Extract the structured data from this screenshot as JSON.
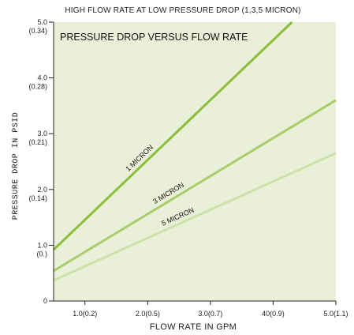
{
  "chart_data": {
    "type": "line",
    "title": "HIGH FLOW RATE AT LOW PRESSURE DROP (1,3,5 MICRON)",
    "subtitle": "PRESSURE DROP VERSUS FLOW RATE",
    "xlabel": "FLOW RATE IN GPM",
    "ylabel": "PRESSURE DROP IN PSID",
    "xlim": [
      0.5,
      5.0
    ],
    "ylim": [
      0,
      5.0
    ],
    "x_ticks": [
      {
        "value": 1.0,
        "label": "1.0(0.2)"
      },
      {
        "value": 2.0,
        "label": "2.0(0.5)"
      },
      {
        "value": 3.0,
        "label": "3.0(0.7)"
      },
      {
        "value": 4.0,
        "label": "40(0.9)"
      },
      {
        "value": 5.0,
        "label": "5.0(1.1)"
      }
    ],
    "y_ticks": [
      {
        "value": 0,
        "label": "0",
        "sub": ""
      },
      {
        "value": 1.0,
        "label": "1.0",
        "sub": "(0.)"
      },
      {
        "value": 2.0,
        "label": "2.0",
        "sub": "(0.14)"
      },
      {
        "value": 3.0,
        "label": "3.0",
        "sub": "(0.21)"
      },
      {
        "value": 4.0,
        "label": "4.0",
        "sub": "(0.28)"
      },
      {
        "value": 5.0,
        "label": "5.0",
        "sub": "(0.34)"
      }
    ],
    "series": [
      {
        "name": "1 MICRON",
        "color": "#8cbd3c",
        "x": [
          0.5,
          4.3
        ],
        "y": [
          0.92,
          5.0
        ]
      },
      {
        "name": "3 MICRON",
        "color": "#a9cc6a",
        "x": [
          0.5,
          5.0
        ],
        "y": [
          0.54,
          3.6
        ]
      },
      {
        "name": "5 MICRON",
        "color": "#cfe0a8",
        "x": [
          0.5,
          5.0
        ],
        "y": [
          0.37,
          2.65
        ]
      }
    ],
    "grid": false,
    "legend": "inline",
    "background_color": "#eaf0d8"
  }
}
